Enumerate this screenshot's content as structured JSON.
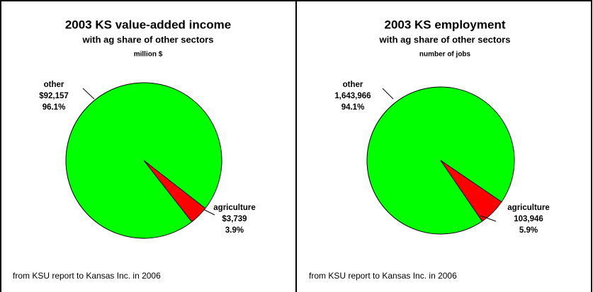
{
  "chart_data": [
    {
      "type": "pie",
      "title": "2003 KS value-added income",
      "subtitle": "with ag share of other sectors",
      "unit_label": "million $",
      "categories": [
        "other",
        "agriculture"
      ],
      "values": [
        92157,
        3739
      ],
      "value_labels": [
        "$92,157",
        "$3,739"
      ],
      "percent_labels": [
        "96.1%",
        "3.9%"
      ],
      "colors": [
        "#00ff00",
        "#ff0000"
      ],
      "note": "from KSU report to Kansas Inc. in 2006"
    },
    {
      "type": "pie",
      "title": "2003 KS employment",
      "subtitle": "with ag share of other sectors",
      "unit_label": "number of jobs",
      "categories": [
        "other",
        "agriculture"
      ],
      "values": [
        1643966,
        103946
      ],
      "value_labels": [
        "1,643,966",
        "103,946"
      ],
      "percent_labels": [
        "94.1%",
        "5.9%"
      ],
      "colors": [
        "#00ff00",
        "#ff0000"
      ],
      "note": "from KSU report to Kansas Inc. in 2006"
    }
  ]
}
